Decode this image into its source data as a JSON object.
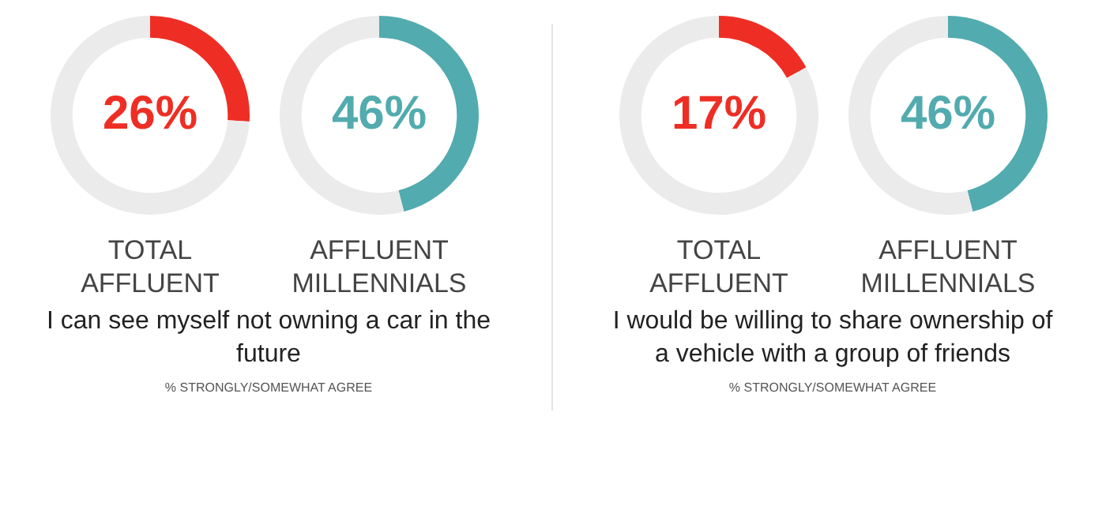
{
  "chart_data": [
    {
      "type": "donut",
      "title": "TOTAL AFFLUENT",
      "categories": [
        null,
        null
      ],
      "values": [
        26,
        74
      ],
      "colors": [
        "#ee2e24",
        "#ebebeb"
      ],
      "value_labels": [
        "26%",
        null
      ],
      "annotations": [
        "I can see myself not owning a car in the future",
        "% STRONGLY/SOMEWHAT AGREE"
      ]
    },
    {
      "type": "donut",
      "title": "AFFLUENT MILLENNIALS",
      "categories": [
        null,
        null
      ],
      "values": [
        46,
        54
      ],
      "colors": [
        "#52abae",
        "#ebebeb"
      ],
      "value_labels": [
        "46%",
        null
      ]
    },
    {
      "type": "donut",
      "title": "TOTAL AFFLUENT",
      "categories": [
        null,
        null
      ],
      "values": [
        17,
        83
      ],
      "colors": [
        "#ee2e24",
        "#ebebeb"
      ],
      "value_labels": [
        "17%",
        null
      ],
      "annotations": [
        "I would be willing to share ownership of a vehicle with a group of friends",
        "% STRONGLY/SOMEWHAT AGREE"
      ]
    },
    {
      "type": "donut",
      "title": "AFFLUENT MILLENNIALS",
      "categories": [
        null,
        null
      ],
      "values": [
        46,
        54
      ],
      "colors": [
        "#52abae",
        "#ebebeb"
      ],
      "value_labels": [
        "46%",
        null
      ]
    }
  ]
}
